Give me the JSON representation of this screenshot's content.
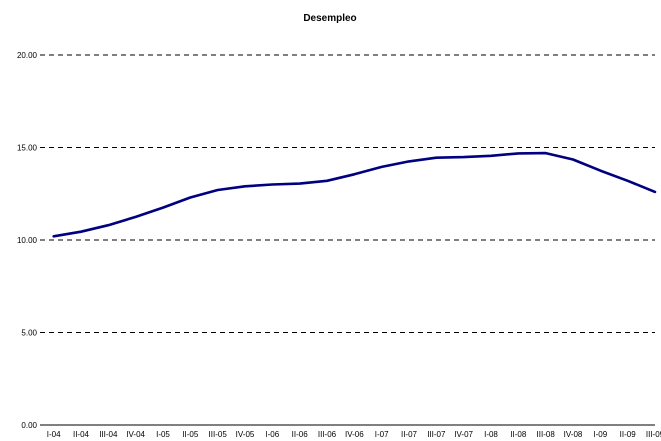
{
  "chart_data": {
    "type": "line",
    "title": "Desempleo",
    "xlabel": "",
    "ylabel": "",
    "ylim": [
      0,
      20
    ],
    "yticks": [
      "0.00",
      "5.00",
      "10.00",
      "15.00",
      "20.00"
    ],
    "grid": true,
    "categories": [
      "I-04",
      "II-04",
      "III-04",
      "IV-04",
      "I-05",
      "II-05",
      "III-05",
      "IV-05",
      "I-06",
      "II-06",
      "III-06",
      "IV-06",
      "I-07",
      "II-07",
      "III-07",
      "IV-07",
      "I-08",
      "II-08",
      "III-08",
      "IV-08",
      "I-09",
      "II-09",
      "III-09"
    ],
    "series": [
      {
        "name": "",
        "color": "#000080",
        "values": [
          10.2,
          10.45,
          10.8,
          11.25,
          11.75,
          12.3,
          12.7,
          12.9,
          13.0,
          13.05,
          13.2,
          13.55,
          13.95,
          14.25,
          14.45,
          14.48,
          14.55,
          14.68,
          14.7,
          14.35,
          13.75,
          13.2,
          12.6
        ]
      }
    ]
  }
}
